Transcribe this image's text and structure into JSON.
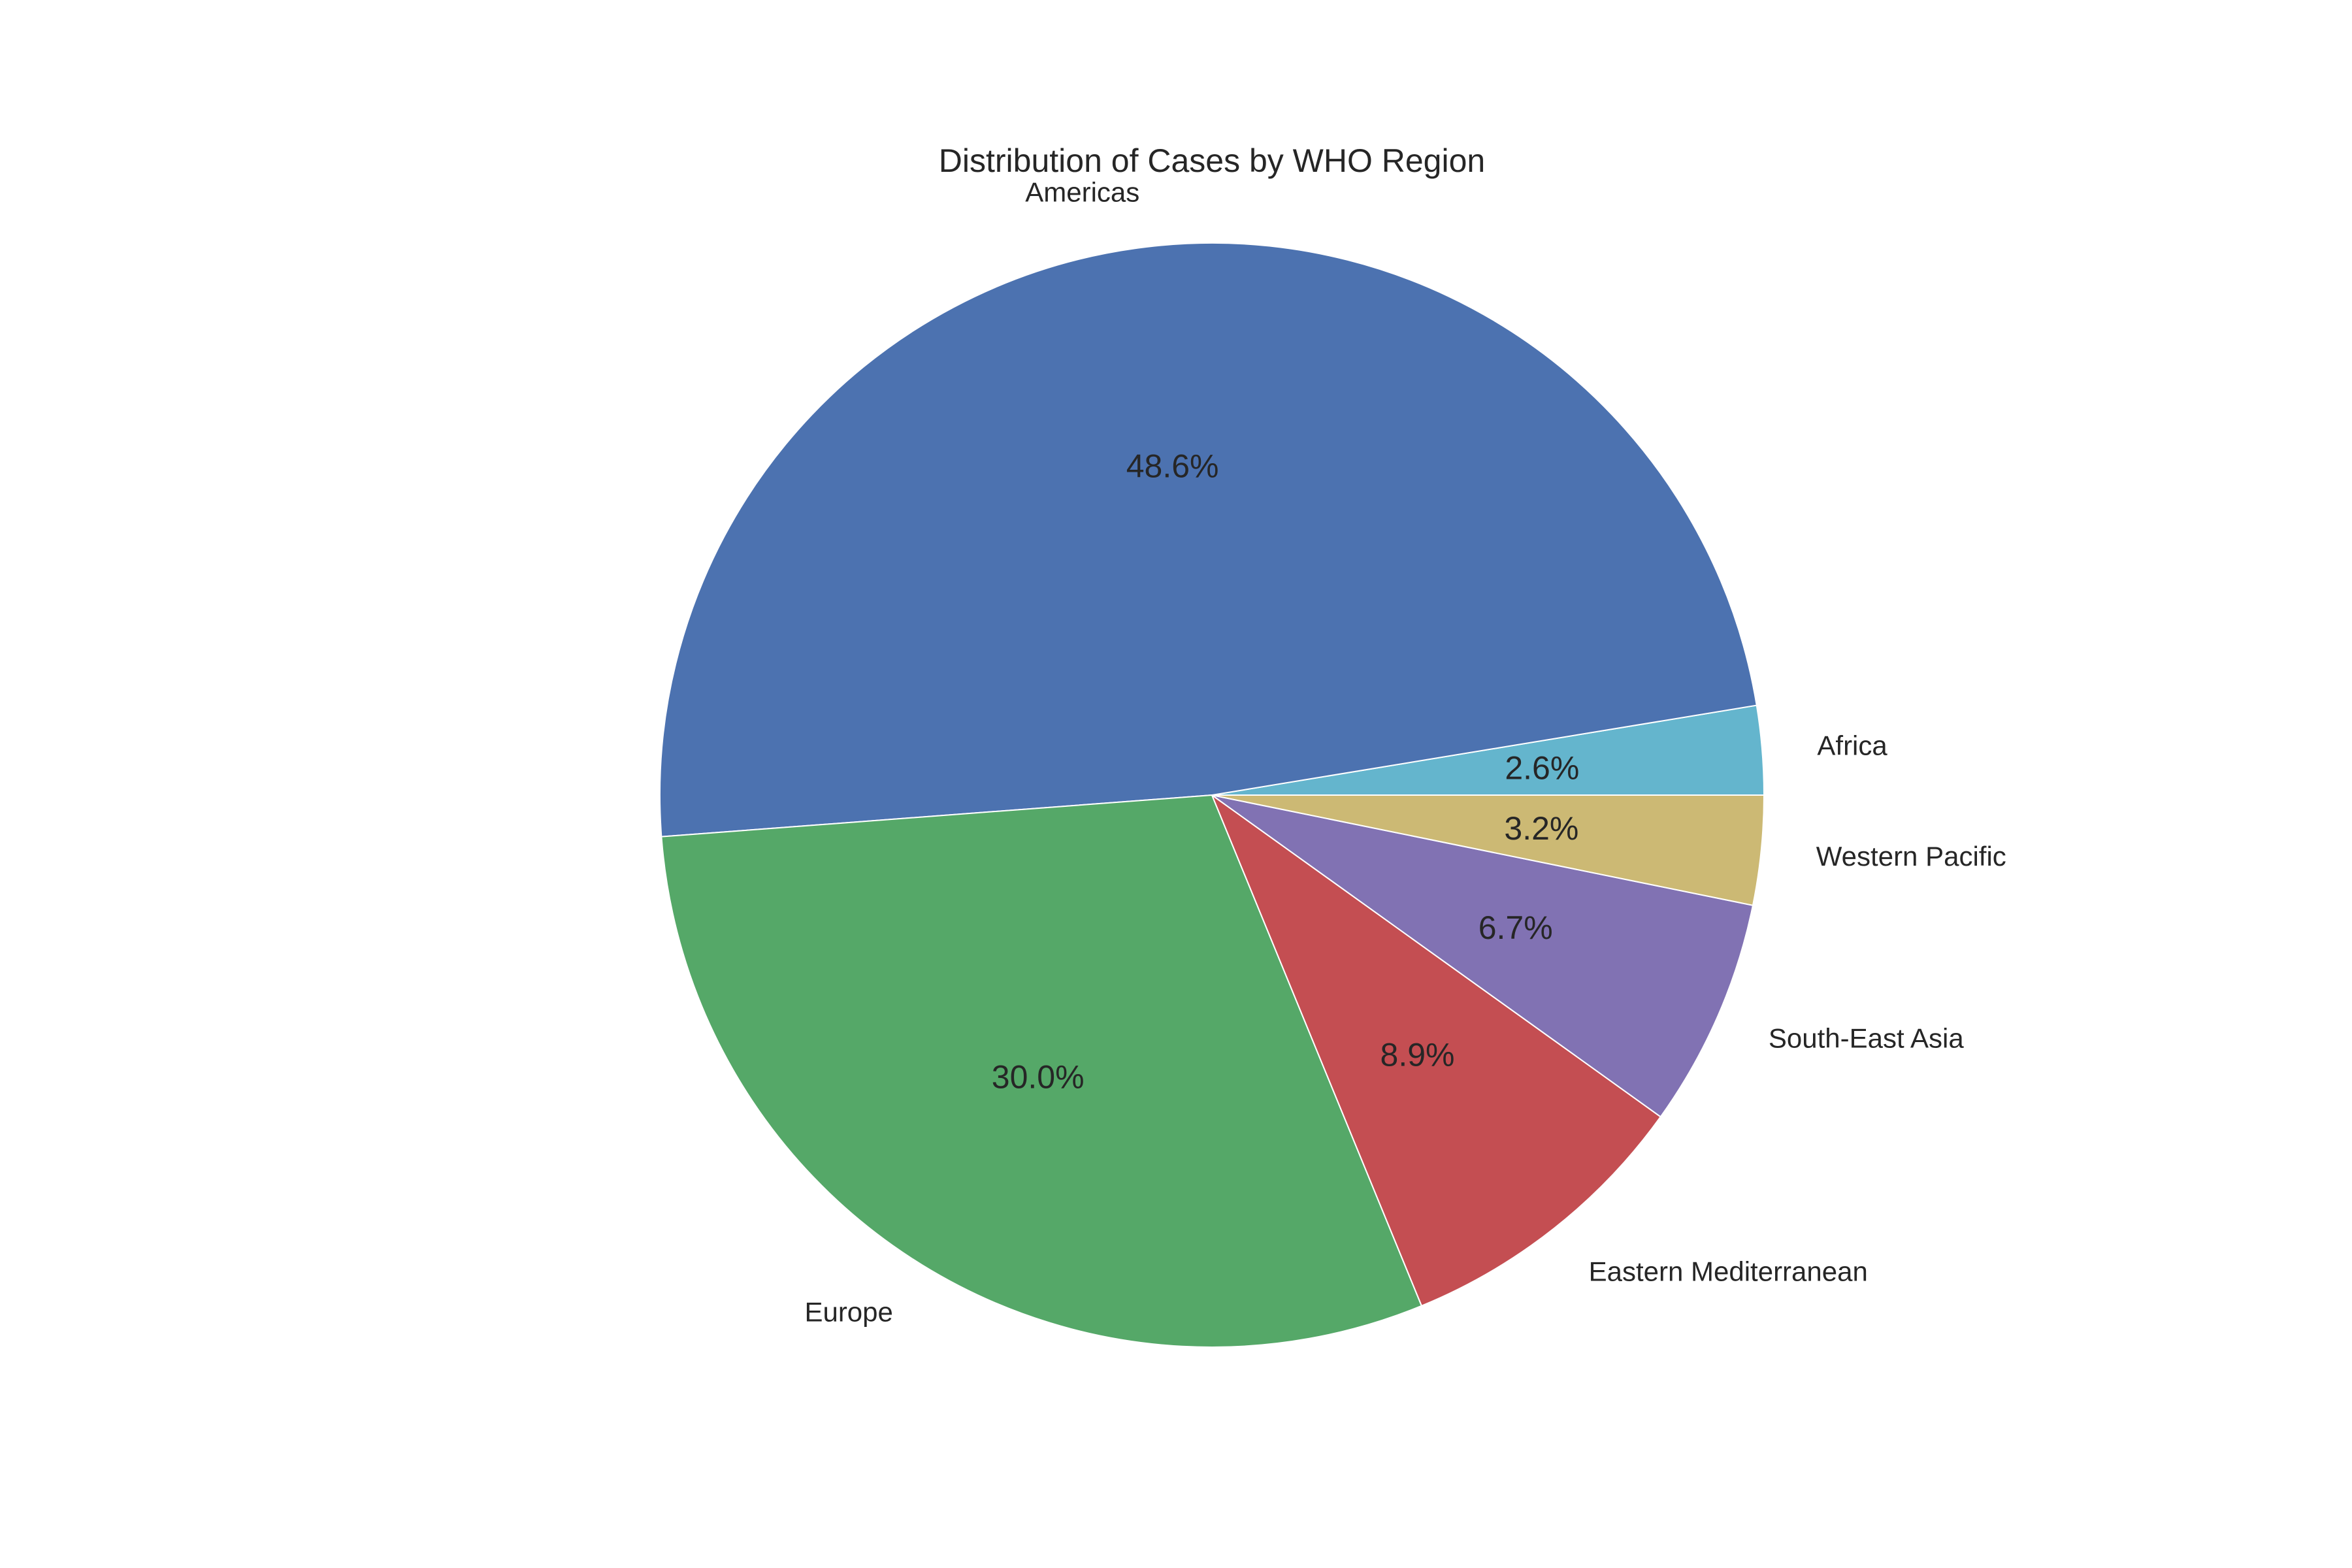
{
  "chart_data": {
    "type": "pie",
    "title": "Distribution of Cases by WHO Region",
    "start_angle_deg": 0,
    "direction": "counterclockwise",
    "categories": [
      "Africa",
      "Americas",
      "Europe",
      "Eastern Mediterranean",
      "South-East Asia",
      "Western Pacific"
    ],
    "values": [
      2.6,
      48.6,
      30.0,
      8.9,
      6.7,
      3.2
    ],
    "percent_labels": [
      "2.6%",
      "48.6%",
      "30.0%",
      "8.9%",
      "6.7%",
      "3.2%"
    ],
    "colors": [
      "#64b5cd",
      "#4c72b0",
      "#55a868",
      "#c44e52",
      "#8172b3",
      "#ccb974"
    ],
    "edge_color": "#ffffff",
    "legend": "none"
  }
}
